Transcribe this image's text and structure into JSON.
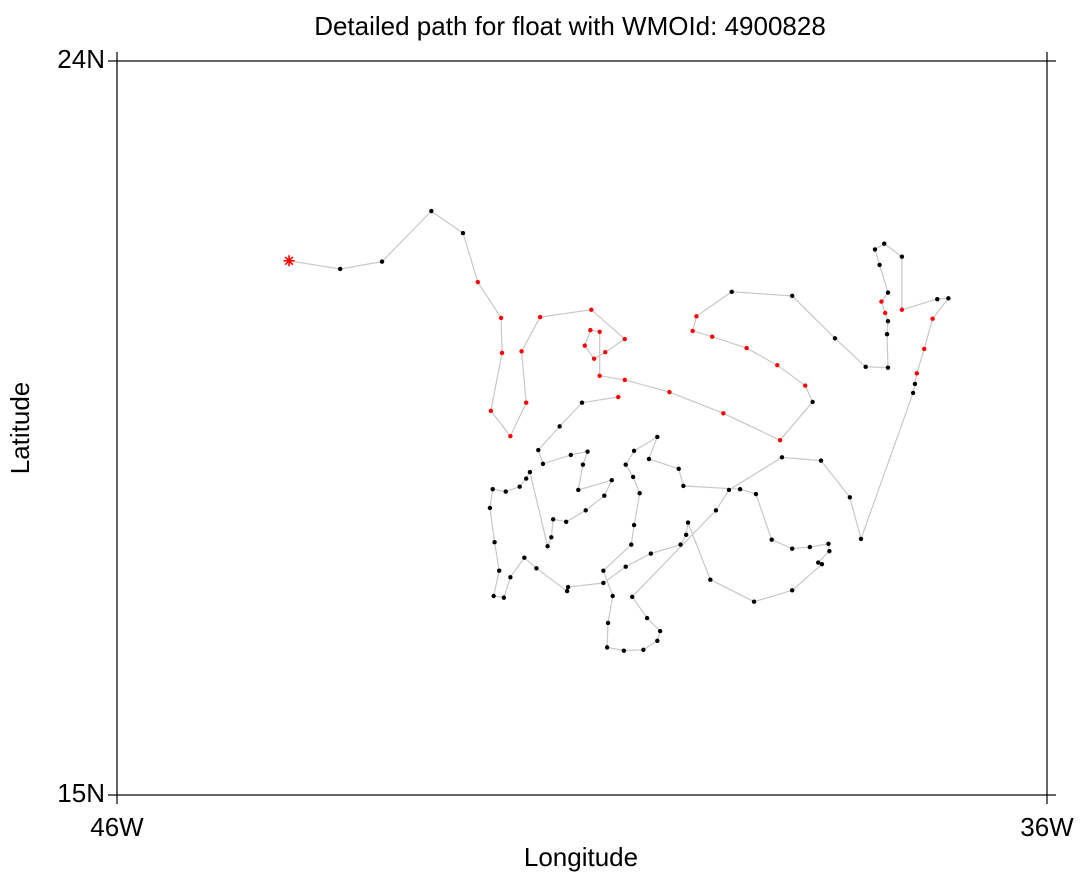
{
  "chart_data": {
    "type": "line",
    "title": "Detailed path for float with WMOId: 4900828",
    "x_label": "Longitude",
    "y_label": "Latitude",
    "xlim": [
      -46,
      -36
    ],
    "ylim": [
      15,
      24
    ],
    "xticks": [
      {
        "value": -46,
        "label": "46W"
      },
      {
        "value": -36,
        "label": "36W"
      }
    ],
    "yticks": [
      {
        "value": 15,
        "label": "15N"
      },
      {
        "value": 24,
        "label": "24N"
      }
    ],
    "line_color": "#c8c8c8",
    "x": [
      -44.15,
      -43.6,
      -43.15,
      -42.62,
      -42.28,
      -42.12,
      -41.87,
      -41.86,
      -41.98,
      -41.77,
      -41.6,
      -41.65,
      -41.45,
      -40.9,
      -40.54,
      -40.75,
      -40.87,
      -40.97,
      -40.91,
      -40.81,
      -40.81,
      -40.54,
      -40.06,
      -39.48,
      -38.87,
      -38.52,
      -38.6,
      -38.9,
      -39.23,
      -39.6,
      -39.81,
      -39.77,
      -39.39,
      -38.74,
      -38.28,
      -37.95,
      -37.71,
      -37.72,
      -37.71,
      -37.74,
      -37.78,
      -37.71,
      -37.8,
      -37.85,
      -37.75,
      -37.56,
      -37.56,
      -37.18,
      -37.06,
      -37.23,
      -37.32,
      -37.4,
      -37.42,
      -37.44,
      -38.0,
      -38.12,
      -38.43,
      -38.85,
      -39.42,
      -39.56,
      -40.46,
      -40.3,
      -40.16,
      -40.19,
      -40.34,
      -40.55,
      -40.73,
      -40.72,
      -40.67,
      -40.77,
      -40.47,
      -40.44,
      -40.38,
      -40.45,
      -40.53,
      -40.44,
      -40.19,
      -40.28,
      -39.96,
      -39.91,
      -39.3,
      -39.13,
      -38.96,
      -38.74,
      -38.55,
      -38.35,
      -38.34,
      -38.46,
      -38.42,
      -38.74,
      -39.15,
      -39.62,
      -39.86,
      -39.88,
      -39.94,
      -40.26,
      -40.53,
      -40.77,
      -41.15,
      -41.16,
      -41.49,
      -41.62,
      -41.77,
      -41.84,
      -41.95,
      -41.89,
      -41.94,
      -41.99,
      -41.96,
      -41.82,
      -41.67,
      -41.6,
      -41.56,
      -41.37,
      -41.33,
      -41.31,
      -41.17,
      -40.96,
      -40.76,
      -40.68,
      -41.04,
      -40.99,
      -40.94,
      -41.12,
      -41.42,
      -41.47,
      -41.24,
      -41.0,
      -40.61
    ],
    "y": [
      21.55,
      21.45,
      21.54,
      22.16,
      21.89,
      21.29,
      20.85,
      20.42,
      19.71,
      19.4,
      19.81,
      20.44,
      20.86,
      20.95,
      20.59,
      20.43,
      20.35,
      20.51,
      20.7,
      20.68,
      20.14,
      20.09,
      19.94,
      19.68,
      19.35,
      19.82,
      20.02,
      20.27,
      20.48,
      20.62,
      20.69,
      20.87,
      21.17,
      21.12,
      20.6,
      20.25,
      20.24,
      20.65,
      20.81,
      20.91,
      21.05,
      21.16,
      21.5,
      21.69,
      21.76,
      21.6,
      20.95,
      21.08,
      21.09,
      20.84,
      20.47,
      20.17,
      20.04,
      19.93,
      18.14,
      18.65,
      19.1,
      19.14,
      18.74,
      18.49,
      17.43,
      17.17,
      17.01,
      16.89,
      16.78,
      16.77,
      16.81,
      17.11,
      17.44,
      17.75,
      18.07,
      18.31,
      18.7,
      18.9,
      19.05,
      19.22,
      19.39,
      19.12,
      19.0,
      18.79,
      18.75,
      18.69,
      18.13,
      18.02,
      18.04,
      18.08,
      17.99,
      17.85,
      17.83,
      17.51,
      17.37,
      17.64,
      18.34,
      18.19,
      18.07,
      17.96,
      17.8,
      17.6,
      17.55,
      17.5,
      17.78,
      17.91,
      17.67,
      17.42,
      17.44,
      17.75,
      18.1,
      18.52,
      18.75,
      18.72,
      18.78,
      18.88,
      18.96,
      18.05,
      18.16,
      18.38,
      18.35,
      18.49,
      18.67,
      18.86,
      18.74,
      19.05,
      19.21,
      19.17,
      19.06,
      19.23,
      19.52,
      19.81,
      19.88
    ],
    "point_colors": [
      "#ff0000",
      "#000000",
      "#000000",
      "#000000",
      "#000000",
      "#ff0000",
      "#ff0000",
      "#ff0000",
      "#ff0000",
      "#ff0000",
      "#ff0000",
      "#ff0000",
      "#ff0000",
      "#ff0000",
      "#ff0000",
      "#ff0000",
      "#ff0000",
      "#ff0000",
      "#ff0000",
      "#ff0000",
      "#ff0000",
      "#ff0000",
      "#ff0000",
      "#ff0000",
      "#ff0000",
      "#000000",
      "#ff0000",
      "#ff0000",
      "#ff0000",
      "#ff0000",
      "#ff0000",
      "#ff0000",
      "#000000",
      "#000000",
      "#000000",
      "#000000",
      "#000000",
      "#000000",
      "#000000",
      "#ff0000",
      "#ff0000",
      "#000000",
      "#000000",
      "#000000",
      "#000000",
      "#000000",
      "#ff0000",
      "#000000",
      "#000000",
      "#ff0000",
      "#ff0000",
      "#ff0000",
      "#000000",
      "#000000",
      "#000000",
      "#000000",
      "#000000",
      "#000000",
      "#000000",
      "#000000",
      "#000000",
      "#000000",
      "#000000",
      "#000000",
      "#000000",
      "#000000",
      "#000000",
      "#000000",
      "#000000",
      "#000000",
      "#000000",
      "#000000",
      "#000000",
      "#000000",
      "#000000",
      "#000000",
      "#000000",
      "#000000",
      "#000000",
      "#000000",
      "#000000",
      "#000000",
      "#000000",
      "#000000",
      "#000000",
      "#000000",
      "#000000",
      "#000000",
      "#000000",
      "#000000",
      "#000000",
      "#000000",
      "#000000",
      "#000000",
      "#000000",
      "#000000",
      "#000000",
      "#000000",
      "#000000",
      "#000000",
      "#000000",
      "#000000",
      "#000000",
      "#000000",
      "#000000",
      "#000000",
      "#000000",
      "#000000",
      "#000000",
      "#000000",
      "#000000",
      "#000000",
      "#000000",
      "#000000",
      "#000000",
      "#000000",
      "#000000",
      "#000000",
      "#000000",
      "#000000",
      "#000000",
      "#000000",
      "#000000",
      "#000000",
      "#000000",
      "#000000",
      "#000000",
      "#000000",
      "#ff0000"
    ]
  }
}
